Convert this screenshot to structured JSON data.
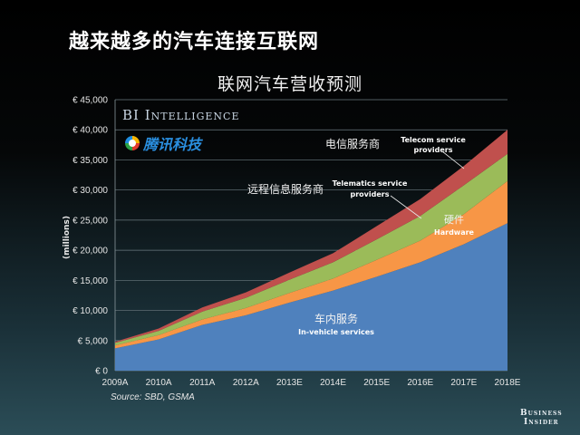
{
  "headline": "越来越多的汽车连接互联网",
  "subtitle": "联网汽车营收预测",
  "watermarks": {
    "bi_intelligence": "BI Intelligence",
    "tencent_tech": "腾讯科技"
  },
  "source": "Source: SBD, GSMA",
  "brand": {
    "line1": "Business",
    "line2": "Insider"
  },
  "annotations": {
    "telecom_cn": "电信服务商",
    "telecom_en_1": "Telecom service",
    "telecom_en_2": "providers",
    "telematics_cn": "远程信息服务商",
    "telematics_en_1": "Telematics service",
    "telematics_en_2": "providers",
    "hardware_cn": "硬件",
    "hardware_en": "Hardware",
    "invehicle_cn": "车内服务",
    "invehicle_en": "In-vehicle services"
  },
  "colors": {
    "in_vehicle": "#4f81bd",
    "hardware": "#f79646",
    "telematics": "#9bbb59",
    "telecom": "#c0504d"
  },
  "chart_data": {
    "type": "area",
    "stacked": true,
    "title": "联网汽车营收预测",
    "xlabel": "",
    "ylabel": "(millions)",
    "ylim": [
      0,
      45000
    ],
    "y_ticks": [
      "€ 0",
      "€ 5,000",
      "€ 10,000",
      "€ 15,000",
      "€ 20,000",
      "€ 25,000",
      "€ 30,000",
      "€ 35,000",
      "€ 40,000",
      "€ 45,000"
    ],
    "grid": true,
    "legend": "inline annotations",
    "categories": [
      "2009A",
      "2010A",
      "2011A",
      "2012A",
      "2013E",
      "2014E",
      "2015E",
      "2016E",
      "2017E",
      "2018E"
    ],
    "series": [
      {
        "name": "In-vehicle services (车内服务)",
        "values": [
          3700,
          5200,
          7600,
          9200,
          11300,
          13300,
          15600,
          18000,
          21000,
          24500
        ]
      },
      {
        "name": "Hardware (硬件)",
        "values": [
          500,
          700,
          900,
          1200,
          1600,
          2000,
          2800,
          3600,
          5000,
          7000
        ]
      },
      {
        "name": "Telematics service providers (远程信息服务商)",
        "values": [
          400,
          700,
          1300,
          1700,
          2200,
          2700,
          3400,
          4100,
          4800,
          4500
        ]
      },
      {
        "name": "Telecom service providers (电信服务商)",
        "values": [
          200,
          400,
          700,
          900,
          1200,
          1500,
          2200,
          2800,
          3200,
          4000
        ]
      }
    ],
    "source": "Source: SBD, GSMA"
  }
}
